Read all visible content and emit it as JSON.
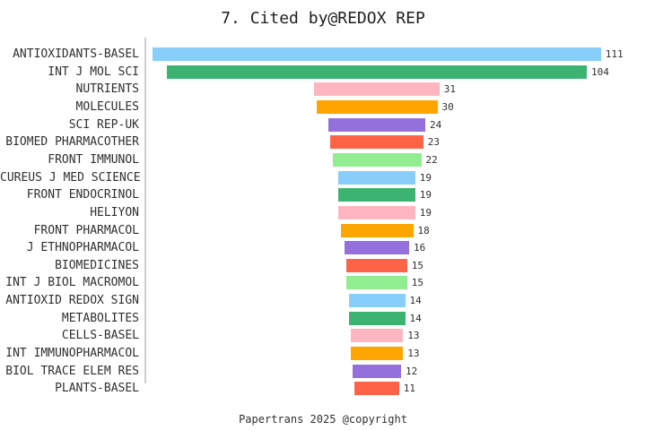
{
  "chart_data": {
    "type": "bar",
    "orientation": "horizontal",
    "layout": "centered-funnel",
    "title": "7. Cited by@REDOX REP",
    "footer": "Papertrans 2025 @copyright",
    "grid": "off",
    "legend": "none",
    "value_max": 111,
    "categories": [
      "ANTIOXIDANTS-BASEL",
      "INT J MOL SCI",
      "NUTRIENTS",
      "MOLECULES",
      "SCI REP-UK",
      "BIOMED PHARMACOTHER",
      "FRONT IMMUNOL",
      "CUREUS J MED SCIENCE",
      "FRONT ENDOCRINOL",
      "HELIYON",
      "FRONT PHARMACOL",
      "J ETHNOPHARMACOL",
      "BIOMEDICINES",
      "INT J BIOL MACROMOL",
      "ANTIOXID REDOX SIGN",
      "METABOLITES",
      "CELLS-BASEL",
      "INT IMMUNOPHARMACOL",
      "BIOL TRACE ELEM RES",
      "PLANTS-BASEL"
    ],
    "values": [
      111,
      104,
      31,
      30,
      24,
      23,
      22,
      19,
      19,
      19,
      18,
      16,
      15,
      15,
      14,
      14,
      13,
      13,
      12,
      11
    ],
    "palette": [
      "#87CEFA",
      "#3CB371",
      "#FFB6C1",
      "#FFA500",
      "#9370DB",
      "#FF6347",
      "#90EE90"
    ],
    "bar_colors": [
      "#87CEFA",
      "#3CB371",
      "#FFB6C1",
      "#FFA500",
      "#9370DB",
      "#FF6347",
      "#90EE90",
      "#87CEFA",
      "#3CB371",
      "#FFB6C1",
      "#FFA500",
      "#9370DB",
      "#FF6347",
      "#90EE90",
      "#87CEFA",
      "#3CB371",
      "#FFB6C1",
      "#FFA500",
      "#9370DB",
      "#FF6347"
    ],
    "text_color": "#2f2f2f",
    "axis_line_color": "#cfcfcf"
  }
}
